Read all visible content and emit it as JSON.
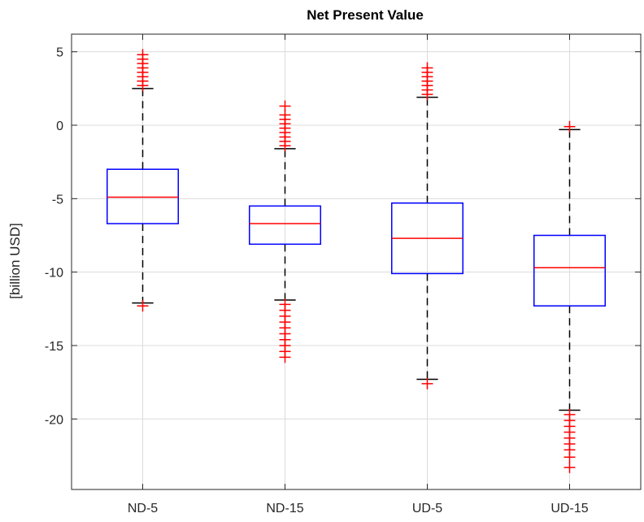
{
  "chart_data": {
    "type": "box",
    "title": "Net Present Value",
    "xlabel": "",
    "ylabel": "[billion USD]",
    "ylim": [
      -24.8,
      6.2
    ],
    "yticks": [
      5,
      0,
      -5,
      -10,
      -15,
      -20
    ],
    "ytick_labels": [
      "5",
      "0",
      "-5",
      "-10",
      "-15",
      "-20"
    ],
    "grid": true,
    "categories": [
      "ND-5",
      "ND-15",
      "UD-5",
      "UD-15"
    ],
    "boxes": [
      {
        "category": "ND-5",
        "q1": -6.7,
        "median": -4.9,
        "q3": -3.0,
        "whisker_low": -12.1,
        "whisker_high": 2.5,
        "outliers": [
          -12.3,
          2.7,
          3.0,
          3.3,
          3.6,
          3.9,
          4.2,
          4.5,
          4.8
        ]
      },
      {
        "category": "ND-15",
        "q1": -8.1,
        "median": -6.7,
        "q3": -5.5,
        "whisker_low": -11.9,
        "whisker_high": -1.6,
        "outliers": [
          -1.4,
          -1.1,
          -0.8,
          -0.5,
          -0.2,
          0.1,
          0.4,
          0.7,
          1.3,
          -12.2,
          -12.6,
          -13.0,
          -13.4,
          -13.8,
          -14.2,
          -14.6,
          -15.0,
          -15.4,
          -15.8
        ]
      },
      {
        "category": "UD-5",
        "q1": -10.1,
        "median": -7.7,
        "q3": -5.3,
        "whisker_low": -17.3,
        "whisker_high": 1.9,
        "outliers": [
          -17.6,
          2.1,
          2.4,
          2.7,
          3.0,
          3.3,
          3.6,
          3.9
        ]
      },
      {
        "category": "UD-15",
        "q1": -12.3,
        "median": -9.7,
        "q3": -7.5,
        "whisker_low": -19.4,
        "whisker_high": -0.3,
        "outliers": [
          -0.1,
          -19.7,
          -20.1,
          -20.5,
          -20.9,
          -21.3,
          -21.7,
          -22.1,
          -22.6,
          -23.3
        ]
      }
    ],
    "colors": {
      "box": "#0000ff",
      "median": "#ff0000",
      "whisker": "#000000",
      "outlier": "#ff0000",
      "grid": "#dcdcdc",
      "axis": "#262626"
    }
  }
}
